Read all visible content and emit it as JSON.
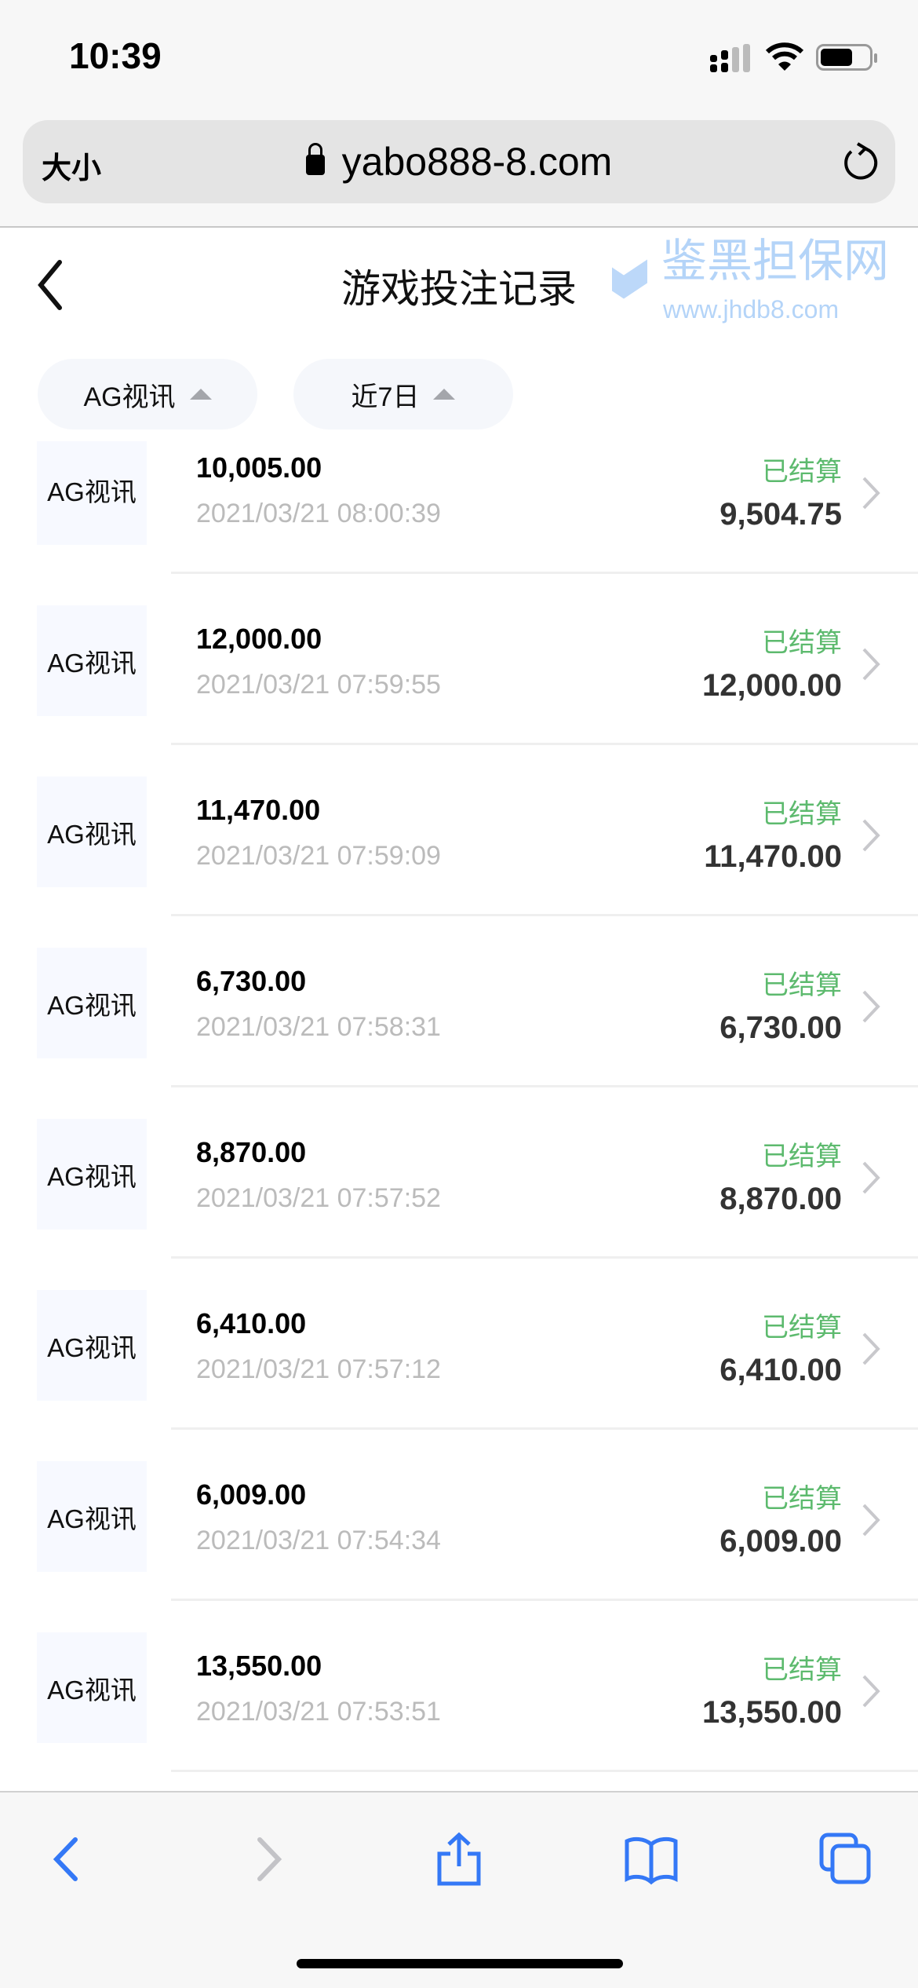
{
  "status_bar": {
    "time": "10:39"
  },
  "browser": {
    "text_size_label": "大小",
    "url": "yabo888-8.com",
    "accent": "#3478f6"
  },
  "page": {
    "title": "游戏投注记录"
  },
  "filters": [
    {
      "label": "AG视讯"
    },
    {
      "label": "近7日"
    }
  ],
  "records": [
    {
      "platform": "AG视讯",
      "bet": "10,005.00",
      "time": "2021/03/21 08:00:39",
      "status": "已结算",
      "payout": "9,504.75"
    },
    {
      "platform": "AG视讯",
      "bet": "12,000.00",
      "time": "2021/03/21 07:59:55",
      "status": "已结算",
      "payout": "12,000.00"
    },
    {
      "platform": "AG视讯",
      "bet": "11,470.00",
      "time": "2021/03/21 07:59:09",
      "status": "已结算",
      "payout": "11,470.00"
    },
    {
      "platform": "AG视讯",
      "bet": "6,730.00",
      "time": "2021/03/21 07:58:31",
      "status": "已结算",
      "payout": "6,730.00"
    },
    {
      "platform": "AG视讯",
      "bet": "8,870.00",
      "time": "2021/03/21 07:57:52",
      "status": "已结算",
      "payout": "8,870.00"
    },
    {
      "platform": "AG视讯",
      "bet": "6,410.00",
      "time": "2021/03/21 07:57:12",
      "status": "已结算",
      "payout": "6,410.00"
    },
    {
      "platform": "AG视讯",
      "bet": "6,009.00",
      "time": "2021/03/21 07:54:34",
      "status": "已结算",
      "payout": "6,009.00"
    },
    {
      "platform": "AG视讯",
      "bet": "13,550.00",
      "time": "2021/03/21 07:53:51",
      "status": "已结算",
      "payout": "13,550.00"
    }
  ],
  "status_color": "#5dba6e",
  "watermark": {
    "name": "鉴黑担保网",
    "site": "www.jhdb8.com"
  }
}
